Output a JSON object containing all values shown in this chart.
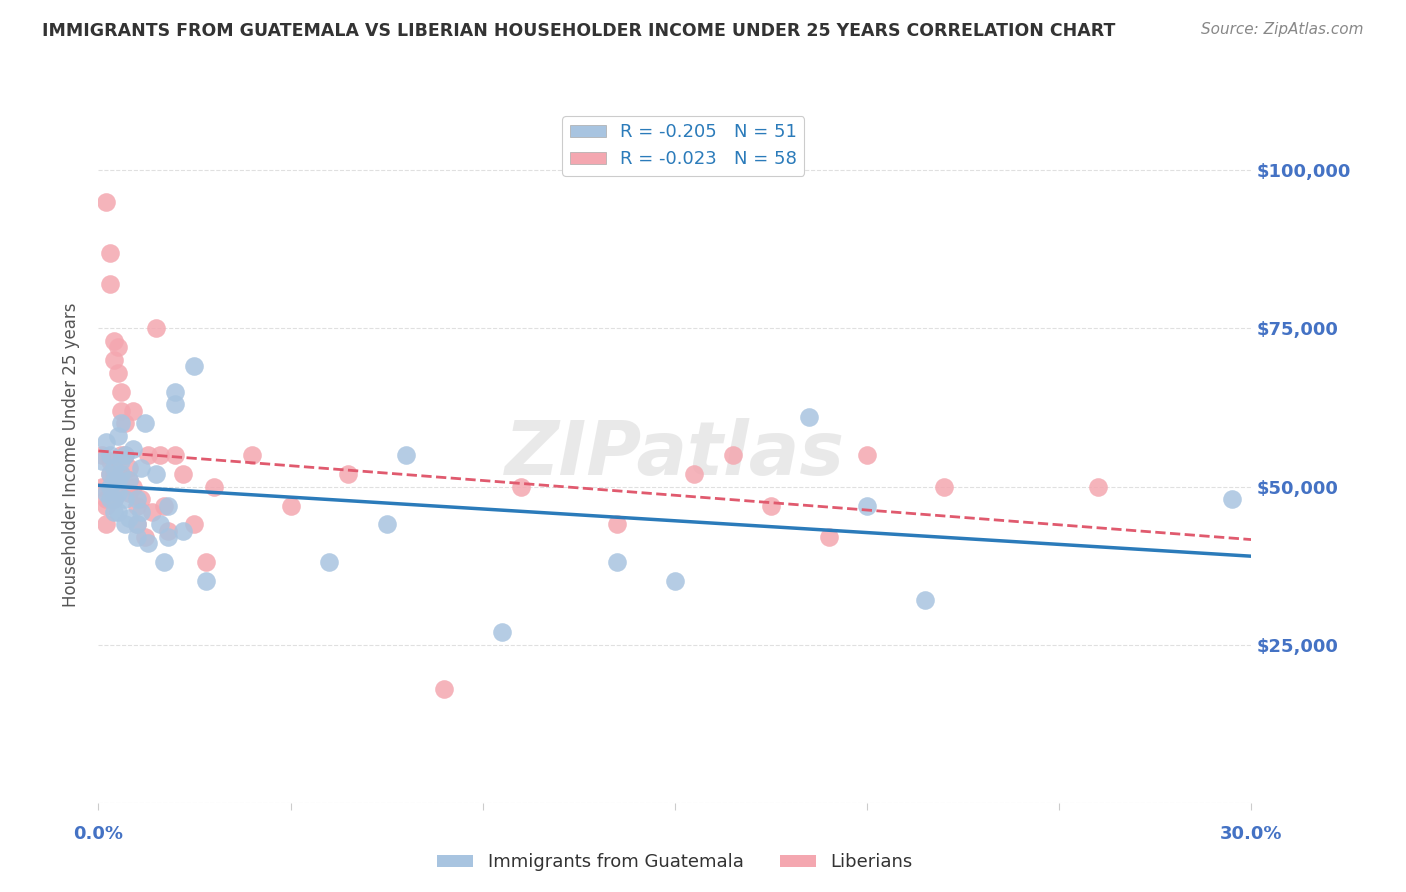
{
  "title": "IMMIGRANTS FROM GUATEMALA VS LIBERIAN HOUSEHOLDER INCOME UNDER 25 YEARS CORRELATION CHART",
  "source": "Source: ZipAtlas.com",
  "ylabel": "Householder Income Under 25 years",
  "xlim": [
    0.0,
    0.3
  ],
  "ylim": [
    0,
    110000
  ],
  "yticks": [
    0,
    25000,
    50000,
    75000,
    100000
  ],
  "ytick_labels": [
    "",
    "$25,000",
    "$50,000",
    "$75,000",
    "$100,000"
  ],
  "R_guatemala": -0.205,
  "N_guatemala": 51,
  "R_liberian": -0.023,
  "N_liberian": 58,
  "color_guatemala": "#a8c4e0",
  "color_liberian": "#f4a7b0",
  "trendline_color_guatemala": "#2b7bba",
  "trendline_color_liberian": "#e05a6e",
  "background_color": "#ffffff",
  "grid_color": "#e0e0e0",
  "title_color": "#333333",
  "axis_label_color": "#4472c4",
  "watermark": "ZIPatlas",
  "guatemala_x": [
    0.001,
    0.002,
    0.002,
    0.003,
    0.003,
    0.003,
    0.003,
    0.004,
    0.004,
    0.004,
    0.004,
    0.005,
    0.005,
    0.005,
    0.005,
    0.006,
    0.006,
    0.006,
    0.007,
    0.007,
    0.007,
    0.008,
    0.008,
    0.009,
    0.01,
    0.01,
    0.01,
    0.011,
    0.011,
    0.012,
    0.013,
    0.015,
    0.016,
    0.017,
    0.018,
    0.018,
    0.02,
    0.02,
    0.022,
    0.025,
    0.028,
    0.06,
    0.075,
    0.08,
    0.105,
    0.135,
    0.15,
    0.185,
    0.2,
    0.215,
    0.295
  ],
  "guatemala_y": [
    54000,
    57000,
    49000,
    52000,
    48000,
    55000,
    50000,
    51000,
    46000,
    53000,
    48000,
    58000,
    49000,
    51000,
    46000,
    60000,
    52000,
    54000,
    55000,
    48000,
    44000,
    51000,
    45000,
    56000,
    42000,
    48000,
    44000,
    53000,
    46000,
    60000,
    41000,
    52000,
    44000,
    38000,
    47000,
    42000,
    63000,
    65000,
    43000,
    69000,
    35000,
    38000,
    44000,
    55000,
    27000,
    38000,
    35000,
    61000,
    47000,
    32000,
    48000
  ],
  "liberian_x": [
    0.001,
    0.001,
    0.002,
    0.002,
    0.002,
    0.002,
    0.003,
    0.003,
    0.003,
    0.003,
    0.003,
    0.004,
    0.004,
    0.004,
    0.004,
    0.004,
    0.005,
    0.005,
    0.005,
    0.006,
    0.006,
    0.006,
    0.006,
    0.007,
    0.007,
    0.008,
    0.008,
    0.008,
    0.009,
    0.009,
    0.01,
    0.01,
    0.011,
    0.012,
    0.013,
    0.014,
    0.015,
    0.016,
    0.017,
    0.018,
    0.02,
    0.022,
    0.025,
    0.028,
    0.03,
    0.04,
    0.05,
    0.065,
    0.09,
    0.11,
    0.135,
    0.155,
    0.165,
    0.175,
    0.19,
    0.2,
    0.22,
    0.26
  ],
  "liberian_y": [
    55000,
    50000,
    95000,
    48000,
    47000,
    44000,
    87000,
    82000,
    54000,
    52000,
    49000,
    73000,
    70000,
    53000,
    52000,
    48000,
    72000,
    68000,
    50000,
    65000,
    62000,
    55000,
    52000,
    60000,
    55000,
    53000,
    51000,
    49000,
    62000,
    50000,
    47000,
    44000,
    48000,
    42000,
    55000,
    46000,
    75000,
    55000,
    47000,
    43000,
    55000,
    52000,
    44000,
    38000,
    50000,
    55000,
    47000,
    52000,
    18000,
    50000,
    44000,
    52000,
    55000,
    47000,
    42000,
    55000,
    50000,
    50000
  ]
}
